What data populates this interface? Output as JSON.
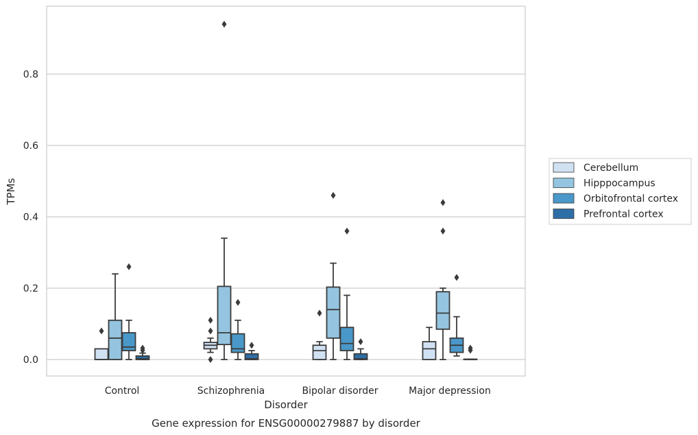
{
  "chart_data": {
    "type": "box",
    "xlabel": "Disorder",
    "ylabel": "TPMs",
    "caption": "Gene expression for ENSG00000279887 by disorder",
    "ylim": [
      -0.045,
      0.99
    ],
    "yticks": [
      "0.0",
      "0.2",
      "0.4",
      "0.6",
      "0.8"
    ],
    "ytick_values": [
      0.0,
      0.2,
      0.4,
      0.6,
      0.8
    ],
    "grid": "horizontal",
    "legend_position": "right",
    "categories": [
      "Control",
      "Schizophrenia",
      "Bipolar disorder",
      "Major depression"
    ],
    "series": [
      {
        "name": "Cerebellum",
        "color": "#d0e1f2",
        "boxes": [
          {
            "q1": 0.0,
            "median": 0.0,
            "q3": 0.03,
            "whisker_low": 0.0,
            "whisker_high": 0.03,
            "outliers": [
              0.08
            ]
          },
          {
            "q1": 0.03,
            "median": 0.04,
            "q3": 0.048,
            "whisker_low": 0.02,
            "whisker_high": 0.06,
            "outliers": [
              0.11,
              0.08,
              0.0
            ]
          },
          {
            "q1": 0.0,
            "median": 0.025,
            "q3": 0.04,
            "whisker_low": 0.0,
            "whisker_high": 0.05,
            "outliers": [
              0.13
            ]
          },
          {
            "q1": 0.0,
            "median": 0.03,
            "q3": 0.05,
            "whisker_low": 0.0,
            "whisker_high": 0.09,
            "outliers": []
          }
        ]
      },
      {
        "name": "Hipppocampus",
        "color": "#94c4df",
        "boxes": [
          {
            "q1": 0.0,
            "median": 0.06,
            "q3": 0.11,
            "whisker_low": 0.0,
            "whisker_high": 0.24,
            "outliers": []
          },
          {
            "q1": 0.042,
            "median": 0.075,
            "q3": 0.205,
            "whisker_low": 0.0,
            "whisker_high": 0.34,
            "outliers": [
              0.94
            ]
          },
          {
            "q1": 0.06,
            "median": 0.14,
            "q3": 0.203,
            "whisker_low": 0.0,
            "whisker_high": 0.27,
            "outliers": [
              0.46
            ]
          },
          {
            "q1": 0.085,
            "median": 0.13,
            "q3": 0.19,
            "whisker_low": 0.0,
            "whisker_high": 0.2,
            "outliers": [
              0.44,
              0.36
            ]
          }
        ]
      },
      {
        "name": "Orbitofrontal cortex",
        "color": "#4a98c9",
        "boxes": [
          {
            "q1": 0.025,
            "median": 0.035,
            "q3": 0.075,
            "whisker_low": 0.0,
            "whisker_high": 0.11,
            "outliers": [
              0.26
            ]
          },
          {
            "q1": 0.02,
            "median": 0.03,
            "q3": 0.072,
            "whisker_low": 0.0,
            "whisker_high": 0.11,
            "outliers": [
              0.16
            ]
          },
          {
            "q1": 0.025,
            "median": 0.045,
            "q3": 0.09,
            "whisker_low": 0.0,
            "whisker_high": 0.18,
            "outliers": [
              0.36
            ]
          },
          {
            "q1": 0.02,
            "median": 0.04,
            "q3": 0.06,
            "whisker_low": 0.01,
            "whisker_high": 0.12,
            "outliers": [
              0.23
            ]
          }
        ]
      },
      {
        "name": "Prefrontal cortex",
        "color": "#2e6ea6",
        "boxes": [
          {
            "q1": 0.0,
            "median": 0.002,
            "q3": 0.01,
            "whisker_low": 0.0,
            "whisker_high": 0.018,
            "outliers": [
              0.032,
              0.026
            ]
          },
          {
            "q1": 0.0,
            "median": 0.002,
            "q3": 0.016,
            "whisker_low": 0.0,
            "whisker_high": 0.025,
            "outliers": [
              0.04
            ]
          },
          {
            "q1": 0.0,
            "median": 0.002,
            "q3": 0.016,
            "whisker_low": 0.0,
            "whisker_high": 0.03,
            "outliers": [
              0.05
            ]
          },
          {
            "q1": 0.0,
            "median": 0.0,
            "q3": 0.001,
            "whisker_low": 0.0,
            "whisker_high": 0.001,
            "outliers": [
              0.032,
              0.026
            ]
          }
        ]
      }
    ]
  }
}
